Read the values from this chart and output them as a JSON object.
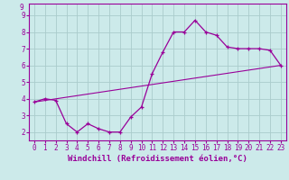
{
  "xlabel": "Windchill (Refroidissement éolien,°C)",
  "background_color": "#cceaea",
  "grid_color": "#aacccc",
  "line_color": "#990099",
  "xlim": [
    -0.5,
    23.5
  ],
  "ylim": [
    1.5,
    9.7
  ],
  "yticks": [
    2,
    3,
    4,
    5,
    6,
    7,
    8,
    9
  ],
  "xticks": [
    0,
    1,
    2,
    3,
    4,
    5,
    6,
    7,
    8,
    9,
    10,
    11,
    12,
    13,
    14,
    15,
    16,
    17,
    18,
    19,
    20,
    21,
    22,
    23
  ],
  "line1_x": [
    0,
    1,
    2,
    3,
    4,
    5,
    6,
    7,
    8,
    9,
    10,
    11,
    12,
    13,
    14,
    15,
    16,
    17,
    18,
    19,
    20,
    21,
    22,
    23
  ],
  "line1_y": [
    3.8,
    4.0,
    3.9,
    2.5,
    2.0,
    2.5,
    2.2,
    2.0,
    2.0,
    2.9,
    3.5,
    5.5,
    6.8,
    8.0,
    8.0,
    8.7,
    8.0,
    7.8,
    7.1,
    7.0,
    7.0,
    7.0,
    6.9,
    6.0
  ],
  "line2_x": [
    0,
    23
  ],
  "line2_y": [
    3.8,
    6.0
  ],
  "font_size_label": 6,
  "font_size_tick": 5.5,
  "font_size_xlabel": 6.5
}
